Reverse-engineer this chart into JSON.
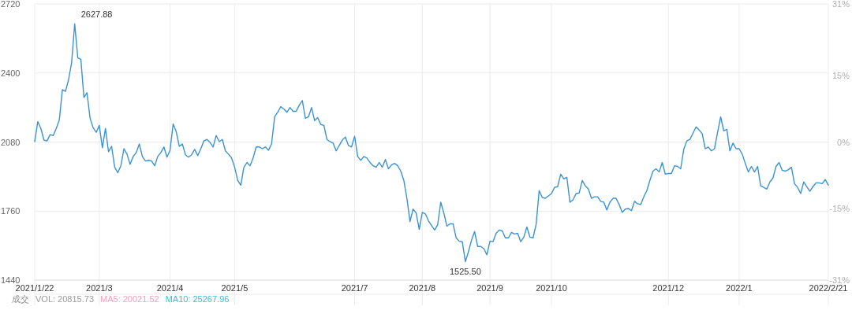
{
  "chart_data": {
    "type": "line",
    "series": [
      {
        "color": "#3a93d4",
        "values": [
          2082,
          2175,
          2143,
          2089,
          2085,
          2114,
          2110,
          2143,
          2182,
          2323,
          2315,
          2369,
          2448,
          2627.88,
          2470,
          2463,
          2287,
          2308,
          2190,
          2146,
          2125,
          2157,
          2053,
          2143,
          2035,
          2060,
          1963,
          1938,
          1970,
          2049,
          2024,
          1977,
          2013,
          2031,
          2071,
          2013,
          1992,
          1995,
          1992,
          1970,
          2013,
          2031,
          2057,
          2010,
          2042,
          2164,
          2128,
          2060,
          2071,
          2021,
          2010,
          2021,
          2046,
          2017,
          2049,
          2085,
          2092,
          2078,
          2057,
          2110,
          2082,
          2092,
          2039,
          2024,
          2006,
          1963,
          1902,
          1880,
          1963,
          1985,
          1970,
          2006,
          2057,
          2057,
          2049,
          2057,
          2042,
          2071,
          2197,
          2218,
          2244,
          2233,
          2218,
          2240,
          2222,
          2222,
          2251,
          2272,
          2190,
          2197,
          2240,
          2179,
          2193,
          2161,
          2157,
          2092,
          2082,
          2075,
          2039,
          2064,
          2089,
          2103,
          2064,
          2057,
          2107,
          2013,
          1995,
          2013,
          2006,
          1985,
          1970,
          1963,
          1985,
          1963,
          1999,
          1956,
          1974,
          1981,
          1970,
          1945,
          1902,
          1819,
          1711,
          1769,
          1751,
          1675,
          1754,
          1747,
          1715,
          1693,
          1672,
          1697,
          1801,
          1751,
          1690,
          1701,
          1701,
          1636,
          1621,
          1618,
          1525.5,
          1571,
          1625,
          1665,
          1596,
          1596,
          1586,
          1557,
          1621,
          1618,
          1657,
          1672,
          1668,
          1636,
          1636,
          1661,
          1654,
          1657,
          1618,
          1639,
          1686,
          1639,
          1636,
          1697,
          1855,
          1823,
          1819,
          1830,
          1841,
          1870,
          1873,
          1931,
          1909,
          1916,
          1801,
          1812,
          1841,
          1844,
          1902,
          1877,
          1862,
          1819,
          1826,
          1826,
          1805,
          1801,
          1765,
          1801,
          1819,
          1819,
          1790,
          1754,
          1769,
          1772,
          1762,
          1805,
          1794,
          1790,
          1826,
          1855,
          1902,
          1945,
          1956,
          1941,
          1985,
          1931,
          1934,
          1934,
          1970,
          1967,
          1956,
          2046,
          2085,
          2092,
          2121,
          2150,
          2136,
          2118,
          2049,
          2057,
          2039,
          2049,
          2125,
          2197,
          2132,
          2139,
          2039,
          2075,
          2049,
          2049,
          2024,
          1981,
          1941,
          1967,
          1941,
          1967,
          1877,
          1870,
          1862,
          1895,
          1913,
          1967,
          1985,
          1949,
          1945,
          1952,
          1963,
          1887,
          1870,
          1841,
          1895,
          1873,
          1852,
          1873,
          1891,
          1891,
          1887,
          1906,
          1880
        ]
      }
    ],
    "categories": [
      "2021/1/22",
      null,
      null,
      null,
      null,
      null,
      null,
      null,
      null,
      null,
      null,
      null,
      null,
      null,
      null,
      null,
      null,
      null,
      null,
      null,
      null,
      "2021/3",
      null,
      null,
      null,
      null,
      null,
      null,
      null,
      null,
      null,
      null,
      null,
      null,
      null,
      null,
      null,
      null,
      null,
      null,
      null,
      null,
      null,
      null,
      "2021/4",
      null,
      null,
      null,
      null,
      null,
      null,
      null,
      null,
      null,
      null,
      null,
      null,
      null,
      null,
      null,
      null,
      null,
      null,
      null,
      null,
      "2021/5",
      null,
      null,
      null,
      null,
      null,
      null,
      null,
      null,
      null,
      null,
      null,
      null,
      null,
      null,
      null,
      null,
      null,
      null,
      null,
      null,
      null,
      null,
      null,
      null,
      null,
      null,
      null,
      null,
      null,
      null,
      null,
      null,
      null,
      null,
      null,
      null,
      null,
      null,
      "2021/7",
      null,
      null,
      null,
      null,
      null,
      null,
      null,
      null,
      null,
      null,
      null,
      null,
      null,
      null,
      null,
      null,
      null,
      null,
      null,
      null,
      null,
      "2021/8",
      null,
      null,
      null,
      null,
      null,
      null,
      null,
      null,
      null,
      null,
      null,
      null,
      null,
      null,
      null,
      null,
      null,
      null,
      null,
      null,
      null,
      "2021/9",
      null,
      null,
      null,
      null,
      null,
      null,
      null,
      null,
      null,
      null,
      null,
      null,
      null,
      null,
      null,
      null,
      null,
      null,
      null,
      "2021/10",
      null,
      null,
      null,
      null,
      null,
      null,
      null,
      null,
      null,
      null,
      null,
      null,
      null,
      null,
      null,
      null,
      null,
      null,
      null,
      null,
      null,
      null,
      null,
      null,
      null,
      null,
      null,
      null,
      null,
      null,
      null,
      null,
      null,
      null,
      null,
      null,
      null,
      "2021/12",
      null,
      null,
      null,
      null,
      null,
      null,
      null,
      null,
      null,
      null,
      null,
      null,
      null,
      null,
      null,
      null,
      null,
      null,
      null,
      null,
      null,
      null,
      "2022/1",
      null,
      null,
      null,
      null,
      null,
      null,
      null,
      null,
      null,
      null,
      null,
      null,
      null,
      null,
      null,
      null,
      null,
      null,
      null,
      null,
      null,
      null,
      null,
      null,
      null,
      null,
      null,
      null,
      "2022/2/21"
    ],
    "ylim": [
      1440,
      2720
    ],
    "yticks": [
      1440,
      1760,
      2080,
      2400,
      2720
    ],
    "y2lim": [
      -31,
      31
    ],
    "y2ticks": [
      {
        "value": -31,
        "label": "-31%"
      },
      {
        "value": -15,
        "label": "-15%"
      },
      {
        "value": 0,
        "label": "0%"
      },
      {
        "value": 15,
        "label": "15%"
      },
      {
        "value": 31,
        "label": "31%"
      }
    ],
    "grid": true,
    "annotations": [
      "2627.88",
      "1525.50",
      "成交",
      "VOL: 20815.73",
      "MA5: 20021.52",
      "MA10: 25267.96"
    ]
  }
}
